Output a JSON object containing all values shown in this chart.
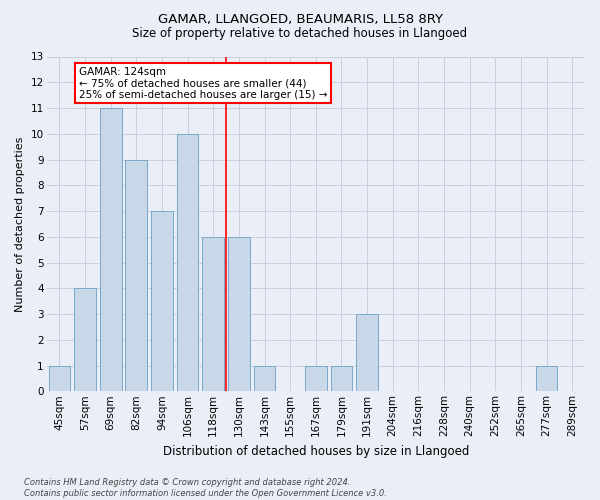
{
  "title": "GAMAR, LLANGOED, BEAUMARIS, LL58 8RY",
  "subtitle": "Size of property relative to detached houses in Llangoed",
  "xlabel": "Distribution of detached houses by size in Llangoed",
  "ylabel": "Number of detached properties",
  "categories": [
    "45sqm",
    "57sqm",
    "69sqm",
    "82sqm",
    "94sqm",
    "106sqm",
    "118sqm",
    "130sqm",
    "143sqm",
    "155sqm",
    "167sqm",
    "179sqm",
    "191sqm",
    "204sqm",
    "216sqm",
    "228sqm",
    "240sqm",
    "252sqm",
    "265sqm",
    "277sqm",
    "289sqm"
  ],
  "values": [
    1,
    4,
    11,
    9,
    7,
    10,
    6,
    6,
    1,
    0,
    1,
    1,
    3,
    0,
    0,
    0,
    0,
    0,
    0,
    1,
    0
  ],
  "bar_color": "#c8d8e8",
  "bar_edge_color": "#7aa8c8",
  "vline_color": "red",
  "annotation_text": "GAMAR: 124sqm\n← 75% of detached houses are smaller (44)\n25% of semi-detached houses are larger (15) →",
  "annotation_box_color": "white",
  "annotation_box_edge_color": "red",
  "ylim": [
    0,
    13
  ],
  "yticks": [
    0,
    1,
    2,
    3,
    4,
    5,
    6,
    7,
    8,
    9,
    10,
    11,
    12,
    13
  ],
  "grid_color": "#c8d0e0",
  "background_color": "#eaeff7",
  "title_fontsize": 9.5,
  "subtitle_fontsize": 8.5,
  "xlabel_fontsize": 8.5,
  "ylabel_fontsize": 8.0,
  "tick_fontsize": 7.5,
  "annot_fontsize": 7.5,
  "footnote": "Contains HM Land Registry data © Crown copyright and database right 2024.\nContains public sector information licensed under the Open Government Licence v3.0.",
  "footnote_fontsize": 6.0
}
